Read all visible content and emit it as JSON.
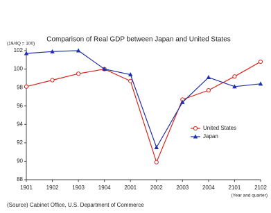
{
  "chart_data": {
    "type": "line",
    "title": "Comparison of Real GDP between Japan and United States",
    "ylabel": "(19/4Q = 100)",
    "xlabel": "(Year and quarter)",
    "source": "(Source) Cabinet Office, U.S. Department of Commerce",
    "categories": [
      "1901",
      "1902",
      "1903",
      "1904",
      "2001",
      "2002",
      "2003",
      "2004",
      "2101",
      "2102"
    ],
    "series": [
      {
        "name": "United States",
        "color": "#d9261c",
        "marker": "circle",
        "values": [
          98.1,
          98.8,
          99.5,
          100.0,
          98.7,
          89.9,
          96.7,
          97.7,
          99.2,
          100.8
        ]
      },
      {
        "name": "Japan",
        "color": "#1f2fa8",
        "marker": "triangle",
        "values": [
          101.7,
          101.9,
          102.0,
          100.0,
          99.4,
          91.5,
          96.4,
          99.1,
          98.1,
          98.4
        ]
      }
    ],
    "ylim": [
      88,
      102
    ],
    "yticks": [
      88,
      90,
      92,
      94,
      96,
      98,
      100,
      102
    ],
    "grid": false,
    "legend": "center right"
  }
}
